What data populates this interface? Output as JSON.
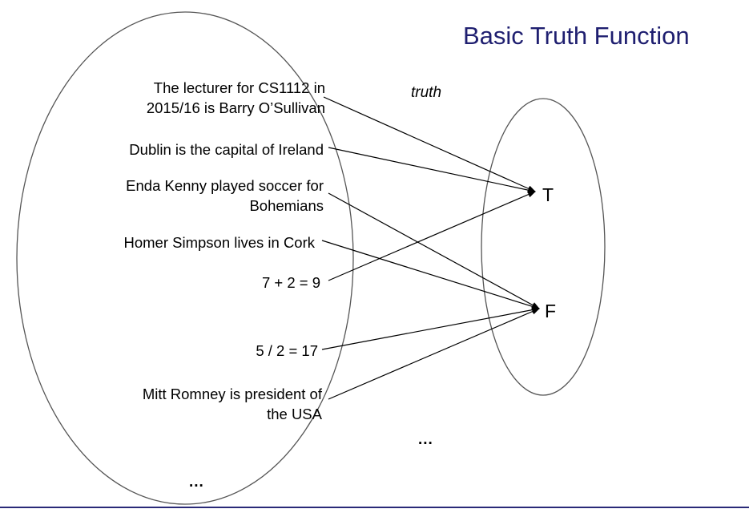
{
  "title": "Basic Truth Function",
  "mapping_label": "truth",
  "truth_values": {
    "true": "T",
    "false": "F"
  },
  "statements": [
    {
      "lines": [
        "The lecturer for CS1112 in",
        "2015/16 is Barry O’Sullivan"
      ],
      "maps_to": "T"
    },
    {
      "lines": [
        "Dublin is the capital of Ireland"
      ],
      "maps_to": "T"
    },
    {
      "lines": [
        "Enda Kenny played soccer for",
        "Bohemians"
      ],
      "maps_to": "F"
    },
    {
      "lines": [
        "Homer Simpson lives in Cork"
      ],
      "maps_to": "F"
    },
    {
      "lines": [
        "7 + 2 = 9"
      ],
      "maps_to": "T"
    },
    {
      "lines": [
        "5 / 2 = 17"
      ],
      "maps_to": "F"
    },
    {
      "lines": [
        "Mitt Romney is president of",
        "the USA"
      ],
      "maps_to": "F"
    }
  ],
  "domain_ellipsis": "...",
  "mapping_ellipsis": "...",
  "colors": {
    "title": "#1f1f70",
    "rule": "#2a2a78",
    "ellipse_stroke": "#555555",
    "arrow": "#000000"
  }
}
